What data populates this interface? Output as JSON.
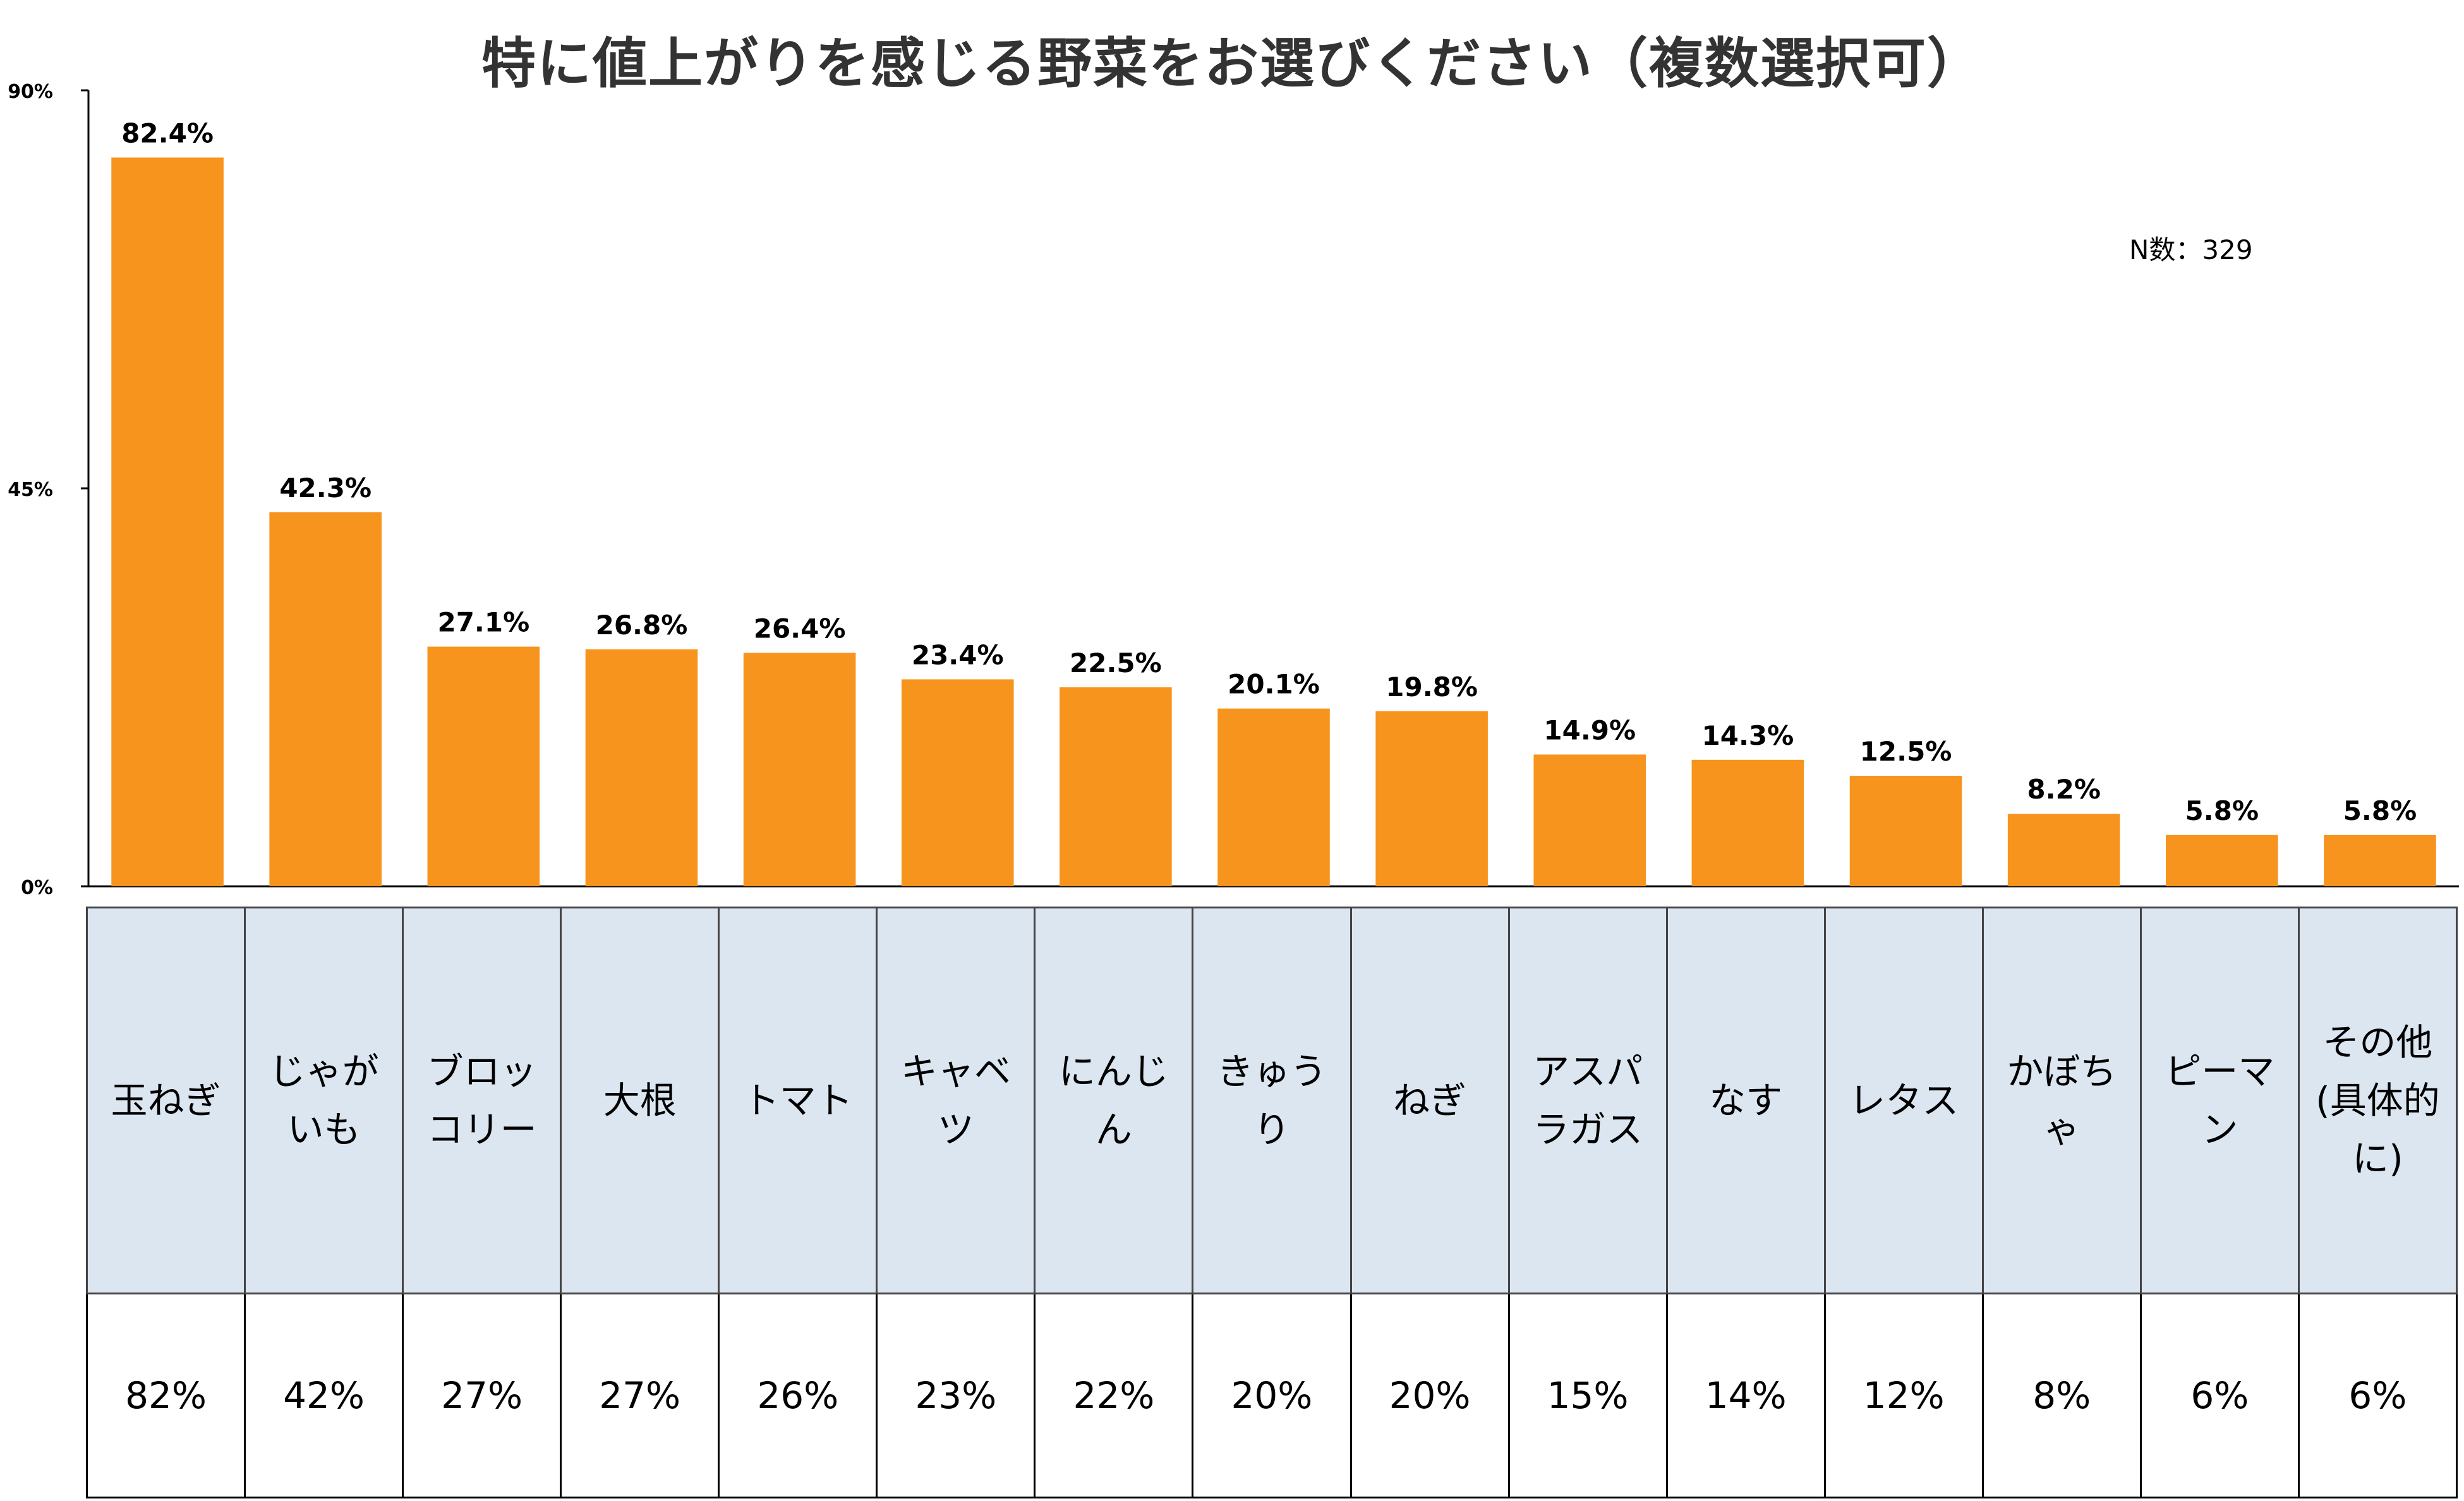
{
  "chart_data": {
    "type": "bar",
    "title": "特に値上がりを感じる野菜をお選びください（複数選択可）",
    "note": "N数：329",
    "xlabel": "",
    "ylabel": "",
    "ylim": [
      0,
      90
    ],
    "y_ticks": [
      "0%",
      "45%",
      "90%"
    ],
    "y_tick_values": [
      0,
      45,
      90
    ],
    "bar_color": "#F7941D",
    "grid": false,
    "categories": [
      "玉ねぎ",
      "じゃがいも",
      "ブロッコリー",
      "大根",
      "トマト",
      "キャベツ",
      "にんじん",
      "きゅうり",
      "ねぎ",
      "アスパラガス",
      "なす",
      "レタス",
      "かぼちゃ",
      "ピーマン",
      "その他(具体的に)"
    ],
    "values": [
      82.4,
      42.3,
      27.1,
      26.8,
      26.4,
      23.4,
      22.5,
      20.1,
      19.8,
      14.9,
      14.3,
      12.5,
      8.2,
      5.8,
      5.8
    ],
    "value_labels": [
      "82.4%",
      "42.3%",
      "27.1%",
      "26.8%",
      "26.4%",
      "23.4%",
      "22.5%",
      "20.1%",
      "19.8%",
      "14.9%",
      "14.3%",
      "12.5%",
      "8.2%",
      "5.8%",
      "5.8%"
    ],
    "table": {
      "header_color": "#DCE6F1",
      "rounded_values": [
        "82%",
        "42%",
        "27%",
        "27%",
        "26%",
        "23%",
        "22%",
        "20%",
        "20%",
        "15%",
        "14%",
        "12%",
        "8%",
        "6%",
        "6%"
      ]
    }
  }
}
